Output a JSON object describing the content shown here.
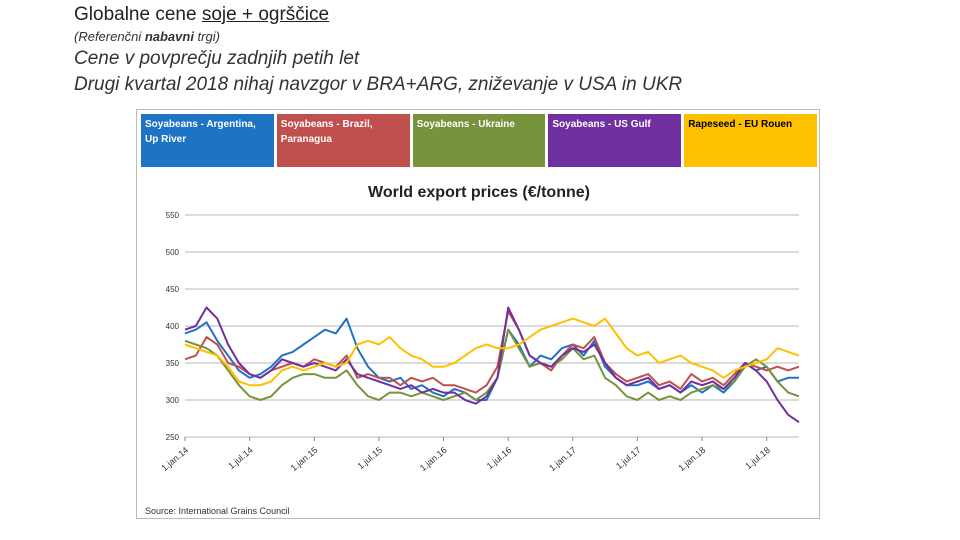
{
  "slide": {
    "title_a": "Globalne cene ",
    "title_b": "soje + ogrščice",
    "subtitle_a": "(Referenčni ",
    "subtitle_b": "nabavni",
    "subtitle_c": " trgi)",
    "line1": "Cene v povprečju zadnjih petih let",
    "line2": "Drugi kvartal 2018 nihaj navzgor v BRA+ARG, zniževanje v USA in UKR"
  },
  "chart_data": {
    "type": "line",
    "title": "World export prices (€/tonne)",
    "source": "Source: International Grains Council",
    "ylim": [
      250,
      550
    ],
    "yticks": [
      250,
      300,
      350,
      400,
      450,
      500,
      550
    ],
    "xlim": [
      0,
      57
    ],
    "xticks": [
      {
        "label": "1.jan.14",
        "x": 0
      },
      {
        "label": "1.jul.14",
        "x": 6
      },
      {
        "label": "1.jan.15",
        "x": 12
      },
      {
        "label": "1.jul.15",
        "x": 18
      },
      {
        "label": "1.jan.16",
        "x": 24
      },
      {
        "label": "1.jul.16",
        "x": 30
      },
      {
        "label": "1.jan.17",
        "x": 36
      },
      {
        "label": "1.jul.17",
        "x": 42
      },
      {
        "label": "1.jan.18",
        "x": 48
      },
      {
        "label": "1.jul.18",
        "x": 54
      }
    ],
    "grid": true,
    "legend_position": "top",
    "series": [
      {
        "name": "Soyabeans - Argentina, Up River",
        "color": "#1f73c4",
        "points": [
          [
            0,
            390
          ],
          [
            1,
            395
          ],
          [
            2,
            405
          ],
          [
            3,
            380
          ],
          [
            4,
            360
          ],
          [
            5,
            340
          ],
          [
            6,
            330
          ],
          [
            7,
            335
          ],
          [
            8,
            345
          ],
          [
            9,
            360
          ],
          [
            10,
            365
          ],
          [
            11,
            375
          ],
          [
            12,
            385
          ],
          [
            13,
            395
          ],
          [
            14,
            390
          ],
          [
            15,
            410
          ],
          [
            16,
            370
          ],
          [
            17,
            345
          ],
          [
            18,
            330
          ],
          [
            19,
            325
          ],
          [
            20,
            330
          ],
          [
            21,
            315
          ],
          [
            22,
            320
          ],
          [
            23,
            310
          ],
          [
            24,
            305
          ],
          [
            25,
            315
          ],
          [
            26,
            310
          ],
          [
            27,
            300
          ],
          [
            28,
            300
          ],
          [
            29,
            330
          ],
          [
            30,
            395
          ],
          [
            31,
            375
          ],
          [
            32,
            345
          ],
          [
            33,
            360
          ],
          [
            34,
            355
          ],
          [
            35,
            370
          ],
          [
            36,
            375
          ],
          [
            37,
            360
          ],
          [
            38,
            380
          ],
          [
            39,
            345
          ],
          [
            40,
            330
          ],
          [
            41,
            320
          ],
          [
            42,
            320
          ],
          [
            43,
            325
          ],
          [
            44,
            315
          ],
          [
            45,
            320
          ],
          [
            46,
            310
          ],
          [
            47,
            320
          ],
          [
            48,
            310
          ],
          [
            49,
            320
          ],
          [
            50,
            310
          ],
          [
            51,
            325
          ],
          [
            52,
            350
          ],
          [
            53,
            340
          ],
          [
            54,
            345
          ],
          [
            55,
            325
          ],
          [
            56,
            330
          ],
          [
            57,
            330
          ]
        ]
      },
      {
        "name": "Soyabeans - Brazil, Paranagua",
        "color": "#c0504d",
        "points": [
          [
            0,
            355
          ],
          [
            1,
            360
          ],
          [
            2,
            385
          ],
          [
            3,
            375
          ],
          [
            4,
            350
          ],
          [
            5,
            345
          ],
          [
            6,
            335
          ],
          [
            7,
            330
          ],
          [
            8,
            340
          ],
          [
            9,
            345
          ],
          [
            10,
            350
          ],
          [
            11,
            345
          ],
          [
            12,
            355
          ],
          [
            13,
            350
          ],
          [
            14,
            345
          ],
          [
            15,
            360
          ],
          [
            16,
            330
          ],
          [
            17,
            335
          ],
          [
            18,
            330
          ],
          [
            19,
            330
          ],
          [
            20,
            320
          ],
          [
            21,
            330
          ],
          [
            22,
            325
          ],
          [
            23,
            330
          ],
          [
            24,
            320
          ],
          [
            25,
            320
          ],
          [
            26,
            315
          ],
          [
            27,
            310
          ],
          [
            28,
            320
          ],
          [
            29,
            345
          ],
          [
            30,
            420
          ],
          [
            31,
            395
          ],
          [
            32,
            360
          ],
          [
            33,
            350
          ],
          [
            34,
            340
          ],
          [
            35,
            360
          ],
          [
            36,
            375
          ],
          [
            37,
            370
          ],
          [
            38,
            385
          ],
          [
            39,
            350
          ],
          [
            40,
            335
          ],
          [
            41,
            325
          ],
          [
            42,
            330
          ],
          [
            43,
            335
          ],
          [
            44,
            320
          ],
          [
            45,
            325
          ],
          [
            46,
            315
          ],
          [
            47,
            335
          ],
          [
            48,
            325
          ],
          [
            49,
            330
          ],
          [
            50,
            320
          ],
          [
            51,
            335
          ],
          [
            52,
            350
          ],
          [
            53,
            345
          ],
          [
            54,
            340
          ],
          [
            55,
            345
          ],
          [
            56,
            340
          ],
          [
            57,
            345
          ]
        ]
      },
      {
        "name": "Soyabeans - Ukraine",
        "color": "#77933c",
        "points": [
          [
            0,
            380
          ],
          [
            1,
            375
          ],
          [
            2,
            370
          ],
          [
            3,
            360
          ],
          [
            4,
            340
          ],
          [
            5,
            320
          ],
          [
            6,
            305
          ],
          [
            7,
            300
          ],
          [
            8,
            305
          ],
          [
            9,
            320
          ],
          [
            10,
            330
          ],
          [
            11,
            335
          ],
          [
            12,
            335
          ],
          [
            13,
            330
          ],
          [
            14,
            330
          ],
          [
            15,
            340
          ],
          [
            16,
            320
          ],
          [
            17,
            305
          ],
          [
            18,
            300
          ],
          [
            19,
            310
          ],
          [
            20,
            310
          ],
          [
            21,
            305
          ],
          [
            22,
            310
          ],
          [
            23,
            305
          ],
          [
            24,
            300
          ],
          [
            25,
            305
          ],
          [
            26,
            310
          ],
          [
            27,
            300
          ],
          [
            28,
            310
          ],
          [
            29,
            330
          ],
          [
            30,
            395
          ],
          [
            31,
            370
          ],
          [
            32,
            345
          ],
          [
            33,
            350
          ],
          [
            34,
            345
          ],
          [
            35,
            355
          ],
          [
            36,
            370
          ],
          [
            37,
            355
          ],
          [
            38,
            360
          ],
          [
            39,
            330
          ],
          [
            40,
            320
          ],
          [
            41,
            305
          ],
          [
            42,
            300
          ],
          [
            43,
            310
          ],
          [
            44,
            300
          ],
          [
            45,
            305
          ],
          [
            46,
            300
          ],
          [
            47,
            310
          ],
          [
            48,
            315
          ],
          [
            49,
            320
          ],
          [
            50,
            315
          ],
          [
            51,
            325
          ],
          [
            52,
            345
          ],
          [
            53,
            355
          ],
          [
            54,
            345
          ],
          [
            55,
            325
          ],
          [
            56,
            310
          ],
          [
            57,
            305
          ]
        ]
      },
      {
        "name": "Soyabeans - US Gulf",
        "color": "#7030a0",
        "points": [
          [
            0,
            395
          ],
          [
            1,
            400
          ],
          [
            2,
            425
          ],
          [
            3,
            410
          ],
          [
            4,
            375
          ],
          [
            5,
            350
          ],
          [
            6,
            335
          ],
          [
            7,
            330
          ],
          [
            8,
            340
          ],
          [
            9,
            355
          ],
          [
            10,
            350
          ],
          [
            11,
            345
          ],
          [
            12,
            350
          ],
          [
            13,
            345
          ],
          [
            14,
            340
          ],
          [
            15,
            355
          ],
          [
            16,
            335
          ],
          [
            17,
            330
          ],
          [
            18,
            325
          ],
          [
            19,
            320
          ],
          [
            20,
            315
          ],
          [
            21,
            320
          ],
          [
            22,
            310
          ],
          [
            23,
            315
          ],
          [
            24,
            310
          ],
          [
            25,
            310
          ],
          [
            26,
            300
          ],
          [
            27,
            295
          ],
          [
            28,
            305
          ],
          [
            29,
            330
          ],
          [
            30,
            425
          ],
          [
            31,
            395
          ],
          [
            32,
            360
          ],
          [
            33,
            350
          ],
          [
            34,
            345
          ],
          [
            35,
            360
          ],
          [
            36,
            370
          ],
          [
            37,
            365
          ],
          [
            38,
            375
          ],
          [
            39,
            350
          ],
          [
            40,
            330
          ],
          [
            41,
            320
          ],
          [
            42,
            325
          ],
          [
            43,
            330
          ],
          [
            44,
            315
          ],
          [
            45,
            320
          ],
          [
            46,
            310
          ],
          [
            47,
            325
          ],
          [
            48,
            320
          ],
          [
            49,
            325
          ],
          [
            50,
            315
          ],
          [
            51,
            330
          ],
          [
            52,
            350
          ],
          [
            53,
            340
          ],
          [
            54,
            325
          ],
          [
            55,
            300
          ],
          [
            56,
            280
          ],
          [
            57,
            270
          ]
        ]
      },
      {
        "name": "Rapeseed - EU Rouen",
        "color": "#ffc000",
        "points": [
          [
            0,
            375
          ],
          [
            1,
            370
          ],
          [
            2,
            365
          ],
          [
            3,
            360
          ],
          [
            4,
            345
          ],
          [
            5,
            325
          ],
          [
            6,
            320
          ],
          [
            7,
            320
          ],
          [
            8,
            325
          ],
          [
            9,
            340
          ],
          [
            10,
            345
          ],
          [
            11,
            340
          ],
          [
            12,
            345
          ],
          [
            13,
            350
          ],
          [
            14,
            345
          ],
          [
            15,
            350
          ],
          [
            16,
            375
          ],
          [
            17,
            380
          ],
          [
            18,
            375
          ],
          [
            19,
            385
          ],
          [
            20,
            370
          ],
          [
            21,
            360
          ],
          [
            22,
            355
          ],
          [
            23,
            345
          ],
          [
            24,
            345
          ],
          [
            25,
            350
          ],
          [
            26,
            360
          ],
          [
            27,
            370
          ],
          [
            28,
            375
          ],
          [
            29,
            370
          ],
          [
            30,
            370
          ],
          [
            31,
            375
          ],
          [
            32,
            385
          ],
          [
            33,
            395
          ],
          [
            34,
            400
          ],
          [
            35,
            405
          ],
          [
            36,
            410
          ],
          [
            37,
            405
          ],
          [
            38,
            400
          ],
          [
            39,
            410
          ],
          [
            40,
            390
          ],
          [
            41,
            370
          ],
          [
            42,
            360
          ],
          [
            43,
            365
          ],
          [
            44,
            350
          ],
          [
            45,
            355
          ],
          [
            46,
            360
          ],
          [
            47,
            350
          ],
          [
            48,
            345
          ],
          [
            49,
            340
          ],
          [
            50,
            330
          ],
          [
            51,
            340
          ],
          [
            52,
            345
          ],
          [
            53,
            350
          ],
          [
            54,
            355
          ],
          [
            55,
            370
          ],
          [
            56,
            365
          ],
          [
            57,
            360
          ]
        ]
      }
    ],
    "legend_colors": [
      "#1f73c4",
      "#c0504d",
      "#77933c",
      "#7030a0",
      "#ffc000"
    ]
  }
}
